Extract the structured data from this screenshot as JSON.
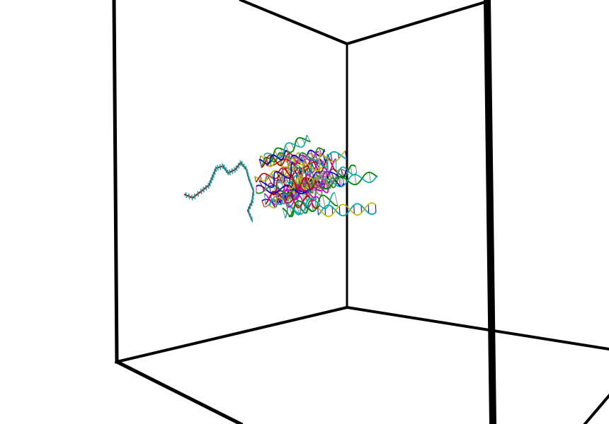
{
  "scene": {
    "background_color": "#ffffff",
    "box_color": "#000000",
    "molecule": {
      "strand_colors": [
        "#cc0000",
        "#00aaaa",
        "#0000cc",
        "#cc00cc",
        "#c8b400",
        "#008800",
        "#888888"
      ]
    }
  }
}
